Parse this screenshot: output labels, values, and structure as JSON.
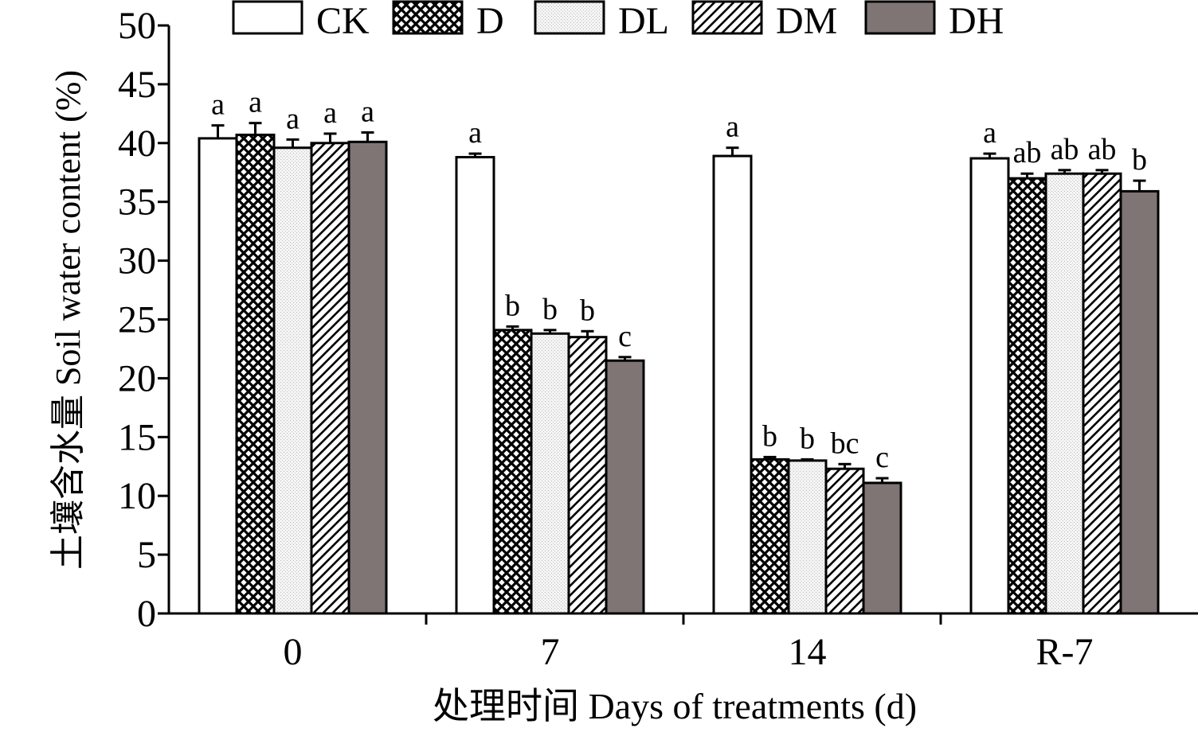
{
  "chart_data": {
    "type": "bar",
    "title": "",
    "xlabel": "处理时间 Days of treatments (d)",
    "ylabel": "土壤含水量 Soil water content (%)",
    "ylim": [
      0,
      50
    ],
    "yticks": [
      0,
      5,
      10,
      15,
      20,
      25,
      30,
      35,
      40,
      45,
      50
    ],
    "categories": [
      "0",
      "7",
      "14",
      "R-7"
    ],
    "legend_position": "top",
    "grid": false,
    "series": [
      {
        "name": "CK",
        "pattern": "white",
        "values": [
          40.4,
          38.8,
          38.9,
          38.7
        ],
        "errors": [
          1.1,
          0.3,
          0.7,
          0.4
        ],
        "letters": [
          "a",
          "a",
          "a",
          "a"
        ]
      },
      {
        "name": "D",
        "pattern": "crosshatch",
        "values": [
          40.7,
          24.1,
          13.1,
          37.0
        ],
        "errors": [
          1.0,
          0.3,
          0.2,
          0.4
        ],
        "letters": [
          "a",
          "b",
          "b",
          "ab"
        ]
      },
      {
        "name": "DL",
        "pattern": "dotted",
        "values": [
          39.6,
          23.8,
          13.0,
          37.4
        ],
        "errors": [
          0.7,
          0.3,
          0.1,
          0.3
        ],
        "letters": [
          "a",
          "b",
          "b",
          "ab"
        ]
      },
      {
        "name": "DM",
        "pattern": "diagonal",
        "values": [
          40.0,
          23.5,
          12.3,
          37.4
        ],
        "errors": [
          0.8,
          0.5,
          0.4,
          0.3
        ],
        "letters": [
          "a",
          "b",
          "bc",
          "ab"
        ]
      },
      {
        "name": "DH",
        "pattern": "gray",
        "values": [
          40.1,
          21.5,
          11.1,
          35.9
        ],
        "errors": [
          0.8,
          0.3,
          0.4,
          0.9
        ],
        "letters": [
          "a",
          "c",
          "c",
          "b"
        ]
      }
    ]
  }
}
